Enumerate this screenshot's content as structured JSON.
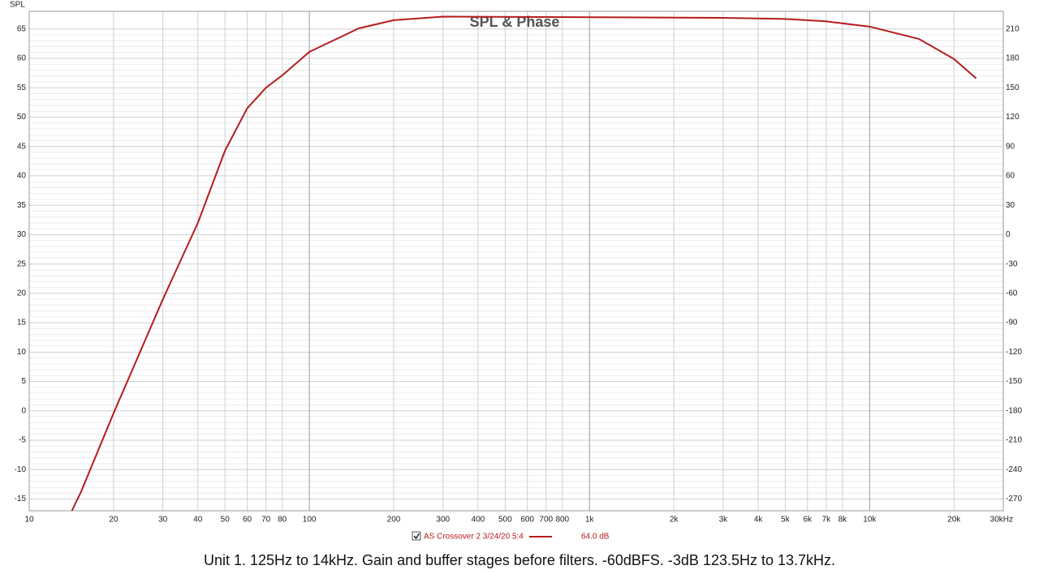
{
  "chart_data": {
    "type": "line",
    "title": "SPL & Phase",
    "y_label": "SPL",
    "caption": "Unit 1. 125Hz to 14kHz. Gain and buffer stages before filters. -60dBFS. -3dB 123.5Hz to 13.7kHz.",
    "x_scale": "log",
    "grid": true,
    "x": [
      14.2,
      15.3,
      20,
      30,
      40,
      50,
      60,
      70,
      80,
      100,
      150,
      200,
      300,
      1000,
      3000,
      5000,
      7000,
      10000,
      15000,
      20000,
      24000
    ],
    "series": [
      {
        "name": "AS Crossover 2 3/24/20 5:4",
        "color": "#b51c1c",
        "legend_value": "64.0 dB",
        "values": [
          -17,
          -13.8,
          -0.4,
          19,
          32,
          44.3,
          51.5,
          55,
          57.1,
          61.1,
          65.1,
          66.5,
          67.1,
          67,
          66.9,
          66.7,
          66.3,
          65.4,
          63.3,
          59.9,
          56.6
        ]
      }
    ],
    "xlim": [
      10,
      30000
    ],
    "xticks": [
      10,
      20,
      30,
      40,
      50,
      60,
      70,
      80,
      100,
      200,
      300,
      400,
      500,
      600,
      700,
      800,
      {
        "value": 1000,
        "label": "1k"
      },
      {
        "value": 2000,
        "label": "2k"
      },
      {
        "value": 3000,
        "label": "3k"
      },
      {
        "value": 4000,
        "label": "4k"
      },
      {
        "value": 5000,
        "label": "5k"
      },
      {
        "value": 6000,
        "label": "6k"
      },
      {
        "value": 7000,
        "label": "7k"
      },
      {
        "value": 8000,
        "label": "8k"
      },
      {
        "value": 10000,
        "label": "10k"
      },
      {
        "value": 20000,
        "label": "20k"
      },
      {
        "value": 30000,
        "label": "30kHz"
      }
    ],
    "ylim": [
      -17,
      68
    ],
    "yticks": [
      65,
      60,
      55,
      50,
      45,
      40,
      35,
      30,
      25,
      20,
      15,
      10,
      5,
      0,
      -5,
      -10,
      -15
    ],
    "y2lim": [
      -282,
      228
    ],
    "y2ticks": [
      210,
      180,
      150,
      120,
      90,
      60,
      30,
      0,
      -30,
      -60,
      -90,
      -120,
      -150,
      -180,
      -210,
      -240,
      -270
    ]
  }
}
